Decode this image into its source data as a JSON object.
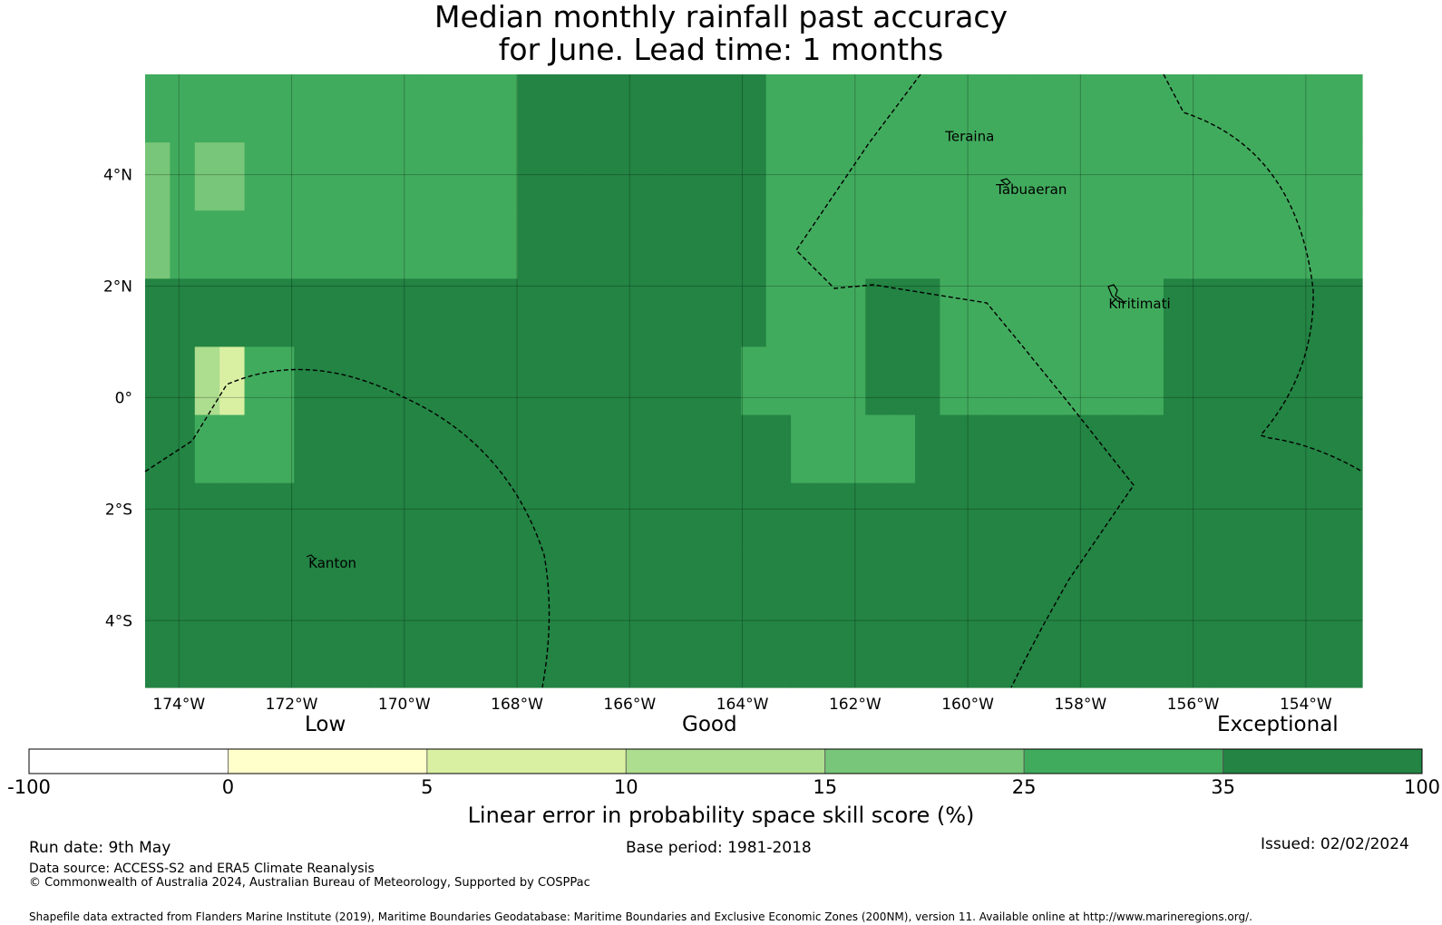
{
  "title": {
    "line1": "Median monthly rainfall past accuracy",
    "line2": "for June. Lead time: 1 months"
  },
  "map": {
    "lon_range": [
      -174.6,
      -153.0
    ],
    "lat_range": [
      -5.2,
      5.8
    ],
    "lat_ticks": [
      {
        "value": 4,
        "label": "4°N"
      },
      {
        "value": 2,
        "label": "2°N"
      },
      {
        "value": 0,
        "label": "0°"
      },
      {
        "value": -2,
        "label": "2°S"
      },
      {
        "value": -4,
        "label": "4°S"
      }
    ],
    "lon_ticks": [
      {
        "value": -174,
        "label": "174°W"
      },
      {
        "value": -172,
        "label": "172°W"
      },
      {
        "value": -170,
        "label": "170°W"
      },
      {
        "value": -168,
        "label": "168°W"
      },
      {
        "value": -166,
        "label": "166°W"
      },
      {
        "value": -164,
        "label": "164°W"
      },
      {
        "value": -162,
        "label": "162°W"
      },
      {
        "value": -160,
        "label": "160°W"
      },
      {
        "value": -158,
        "label": "158°W"
      },
      {
        "value": -156,
        "label": "156°W"
      },
      {
        "value": -154,
        "label": "154°W"
      }
    ],
    "places": [
      {
        "name": "Teraina",
        "lon": -160.4,
        "lat": 4.6
      },
      {
        "name": "Tabuaeran",
        "lon": -159.5,
        "lat": 3.65
      },
      {
        "name": "Kiritimati",
        "lon": -157.5,
        "lat": 1.6
      },
      {
        "name": "Kanton",
        "lon": -171.7,
        "lat": -3.05
      }
    ],
    "skill_grid_levels": [
      "5555555555555556666666666555555555555555555555555",
      "4544555555555556666666666555555555555555555555555",
      "4555555555555556666666666555555555555555555555555",
      "6666666666666666666666666555566655555555566666666",
      "6632556666666666666666665555566655555555566666666",
      "6655556666666666666666666655555666666666666666666",
      "6666666666666666666666666666666666666666666666666",
      "6666666666666666666666666666666666666666666666666",
      "6666666666666666666666666666666666666666666666666"
    ],
    "legend_note": "skill category per grid cell (0=-100..0, 1=0..5, 2=5..10, 3=10..15, 4=15..25, 5=25..35, 6=35..100)"
  },
  "colorbar": {
    "words": {
      "low": "Low",
      "good": "Good",
      "exceptional": "Exceptional"
    },
    "colors": [
      "#ffffff",
      "#ffffcc",
      "#d9f0a3",
      "#addd8e",
      "#78c679",
      "#41ab5d",
      "#238443"
    ],
    "ticks": [
      "-100",
      "0",
      "5",
      "10",
      "15",
      "25",
      "35",
      "100"
    ],
    "label": "Linear error in probability space skill score (%)"
  },
  "footer": {
    "run_date": "Run date: 9th May",
    "base_period": "Base period: 1981-2018",
    "issued": "Issued: 02/02/2024",
    "data_source": "Data source: ACCESS-S2 and ERA5 Climate Reanalysis",
    "copyright": "© Commonwealth of Australia 2024, Australian Bureau of Meteorology, Supported by COSPPac",
    "shapefile": "Shapefile data extracted from Flanders Marine Institute (2019), Maritime Boundaries Geodatabase: Maritime Boundaries and Exclusive Economic Zones (200NM), version 11. Available online at http://www.marineregions.org/."
  }
}
